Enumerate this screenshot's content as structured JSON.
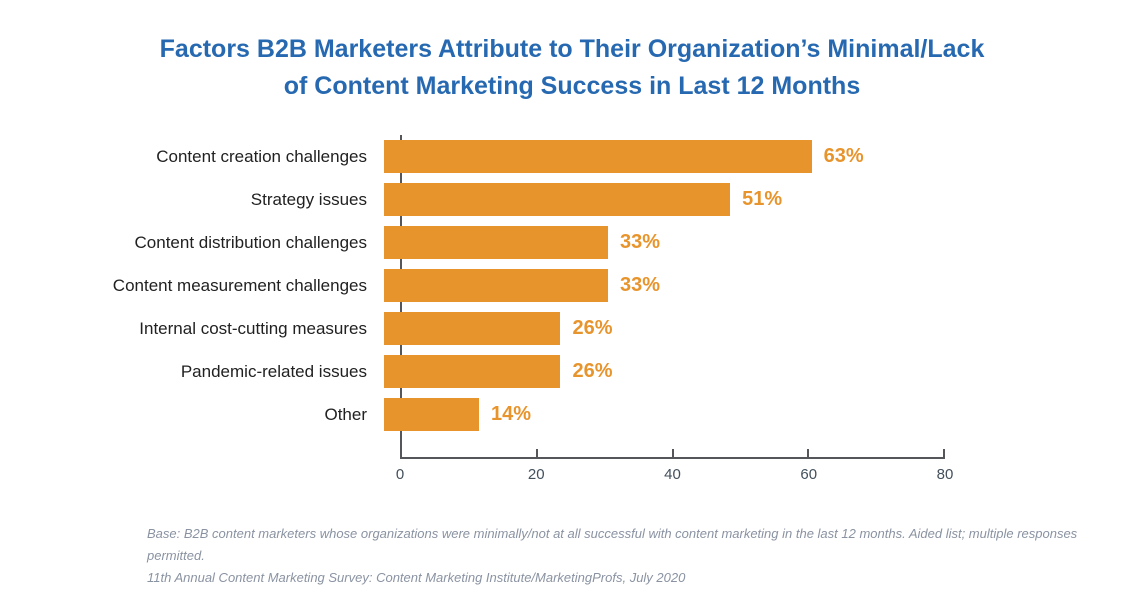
{
  "title": {
    "lines": [
      "Factors B2B Marketers Attribute to Their Organization’s Minimal/Lack",
      "of Content Marketing Success in Last 12 Months"
    ]
  },
  "chart_data": {
    "type": "bar",
    "orientation": "horizontal",
    "title": "Factors B2B Marketers Attribute to Their Organization’s Minimal/Lack of Content Marketing Success in Last 12 Months",
    "categories": [
      "Content creation challenges",
      "Strategy issues",
      "Content distribution challenges",
      "Content measurement challenges",
      "Internal cost-cutting measures",
      "Pandemic-related issues",
      "Other"
    ],
    "values": [
      63,
      51,
      33,
      33,
      26,
      26,
      14
    ],
    "value_labels": [
      "63%",
      "51%",
      "33%",
      "33%",
      "26%",
      "26%",
      "14%"
    ],
    "xlim": [
      0,
      80
    ],
    "x_ticks": [
      0,
      20,
      40,
      60,
      80
    ],
    "grid": false,
    "legend": false,
    "bar_color": "#E8942C",
    "value_label_color": "#E8942C",
    "title_color": "#2769B1",
    "axis_color": "#55565A"
  },
  "footer": {
    "line1": "Base: B2B content marketers whose organizations were minimally/not at all successful with content marketing in the last 12 months. Aided list; multiple responses permitted.",
    "line2": "11th Annual Content Marketing Survey: Content Marketing Institute/MarketingProfs, July 2020"
  }
}
